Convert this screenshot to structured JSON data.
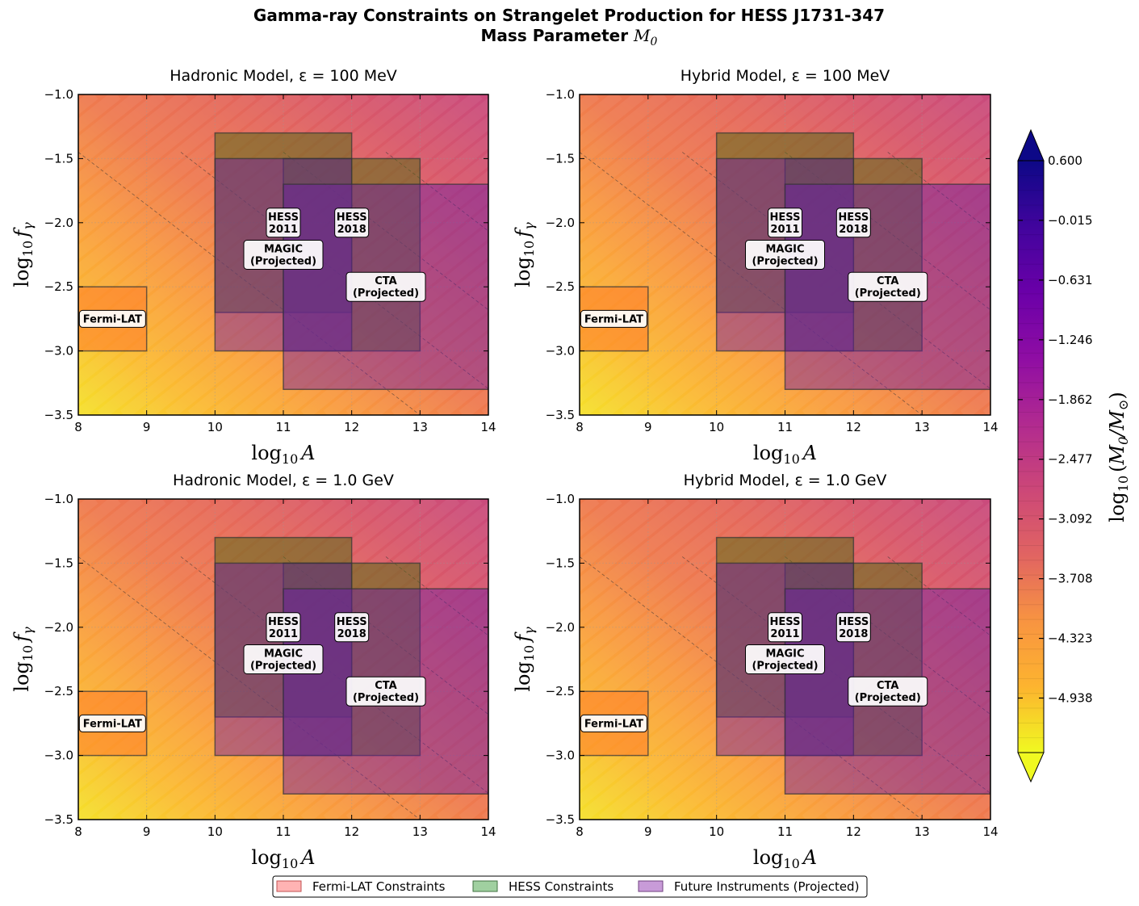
{
  "title": {
    "line1": "Gamma-ray Constraints on Strangelet Production for HESS J1731-347",
    "line2_prefix": "Mass Parameter ",
    "line2_symbol": "M",
    "line2_sub": "0"
  },
  "colors": {
    "fermi": "#ff8c7a",
    "hess": "#556b2f",
    "future": "#7b2d9e",
    "gradient": [
      "#f0f921",
      "#fdb42f",
      "#f89441",
      "#e16462",
      "#cc4778",
      "#b12a90",
      "#8f0da4",
      "#6a00a8",
      "#41049d",
      "#0d0887"
    ]
  },
  "chart_data": [
    {
      "type": "heatmap",
      "title": "Hadronic Model, ε = 100 MeV",
      "xlabel_base": "log",
      "xlabel_sub": "10",
      "xlabel_var": "A",
      "ylabel_base": "log",
      "ylabel_sub": "10",
      "ylabel_var": "f",
      "ylabel_var_sub": "γ",
      "xlim": [
        8,
        14
      ],
      "ylim": [
        -3.5,
        -1.0
      ],
      "xticks": [
        "8",
        "9",
        "10",
        "11",
        "12",
        "13",
        "14"
      ],
      "yticks": [
        "−1.0",
        "−1.5",
        "−2.0",
        "−2.5",
        "−3.0",
        "−3.5"
      ],
      "ytick_values": [
        -1.0,
        -1.5,
        -2.0,
        -2.5,
        -3.0,
        -3.5
      ],
      "regions": [
        {
          "name": "Fermi-LAT",
          "kind": "fermi",
          "x": [
            8,
            9
          ],
          "y": [
            -3.0,
            -2.5
          ]
        },
        {
          "name": "HESS 2011",
          "kind": "hess",
          "x": [
            10,
            12
          ],
          "y": [
            -2.7,
            -1.3
          ]
        },
        {
          "name": "HESS 2018",
          "kind": "hess",
          "x": [
            11,
            13
          ],
          "y": [
            -3.0,
            -1.5
          ]
        },
        {
          "name": "MAGIC (Projected)",
          "kind": "future",
          "x": [
            10,
            12
          ],
          "y": [
            -3.0,
            -1.5
          ]
        },
        {
          "name": "CTA (Projected)",
          "kind": "future",
          "x": [
            11,
            14
          ],
          "y": [
            -3.3,
            -1.7
          ]
        }
      ],
      "labels": [
        {
          "text": [
            "Fermi-LAT"
          ],
          "x": 8.5,
          "y": -2.75
        },
        {
          "text": [
            "HESS",
            "2011"
          ],
          "x": 11.0,
          "y": -2.0
        },
        {
          "text": [
            "HESS",
            "2018"
          ],
          "x": 12.0,
          "y": -2.0
        },
        {
          "text": [
            "MAGIC",
            "(Projected)"
          ],
          "x": 11.0,
          "y": -2.25
        },
        {
          "text": [
            "CTA",
            "(Projected)"
          ],
          "x": 12.5,
          "y": -2.5
        }
      ]
    },
    {
      "type": "heatmap",
      "title": "Hybrid Model, ε = 100 MeV",
      "xlabel_base": "log",
      "xlabel_sub": "10",
      "xlabel_var": "A",
      "ylabel_base": "log",
      "ylabel_sub": "10",
      "ylabel_var": "f",
      "ylabel_var_sub": "γ",
      "xlim": [
        8,
        14
      ],
      "ylim": [
        -3.5,
        -1.0
      ],
      "xticks": [
        "8",
        "9",
        "10",
        "11",
        "12",
        "13",
        "14"
      ],
      "yticks": [
        "−1.0",
        "−1.5",
        "−2.0",
        "−2.5",
        "−3.0",
        "−3.5"
      ],
      "ytick_values": [
        -1.0,
        -1.5,
        -2.0,
        -2.5,
        -3.0,
        -3.5
      ],
      "regions": [
        {
          "name": "Fermi-LAT",
          "kind": "fermi",
          "x": [
            8,
            9
          ],
          "y": [
            -3.0,
            -2.5
          ]
        },
        {
          "name": "HESS 2011",
          "kind": "hess",
          "x": [
            10,
            12
          ],
          "y": [
            -2.7,
            -1.3
          ]
        },
        {
          "name": "HESS 2018",
          "kind": "hess",
          "x": [
            11,
            13
          ],
          "y": [
            -3.0,
            -1.5
          ]
        },
        {
          "name": "MAGIC (Projected)",
          "kind": "future",
          "x": [
            10,
            12
          ],
          "y": [
            -3.0,
            -1.5
          ]
        },
        {
          "name": "CTA (Projected)",
          "kind": "future",
          "x": [
            11,
            14
          ],
          "y": [
            -3.3,
            -1.7
          ]
        }
      ],
      "labels": [
        {
          "text": [
            "Fermi-LAT"
          ],
          "x": 8.5,
          "y": -2.75
        },
        {
          "text": [
            "HESS",
            "2011"
          ],
          "x": 11.0,
          "y": -2.0
        },
        {
          "text": [
            "HESS",
            "2018"
          ],
          "x": 12.0,
          "y": -2.0
        },
        {
          "text": [
            "MAGIC",
            "(Projected)"
          ],
          "x": 11.0,
          "y": -2.25
        },
        {
          "text": [
            "CTA",
            "(Projected)"
          ],
          "x": 12.5,
          "y": -2.5
        }
      ]
    },
    {
      "type": "heatmap",
      "title": "Hadronic Model, ε = 1.0 GeV",
      "xlabel_base": "log",
      "xlabel_sub": "10",
      "xlabel_var": "A",
      "ylabel_base": "log",
      "ylabel_sub": "10",
      "ylabel_var": "f",
      "ylabel_var_sub": "γ",
      "xlim": [
        8,
        14
      ],
      "ylim": [
        -3.5,
        -1.0
      ],
      "xticks": [
        "8",
        "9",
        "10",
        "11",
        "12",
        "13",
        "14"
      ],
      "yticks": [
        "−1.0",
        "−1.5",
        "−2.0",
        "−2.5",
        "−3.0",
        "−3.5"
      ],
      "ytick_values": [
        -1.0,
        -1.5,
        -2.0,
        -2.5,
        -3.0,
        -3.5
      ],
      "regions": [
        {
          "name": "Fermi-LAT",
          "kind": "fermi",
          "x": [
            8,
            9
          ],
          "y": [
            -3.0,
            -2.5
          ]
        },
        {
          "name": "HESS 2011",
          "kind": "hess",
          "x": [
            10,
            12
          ],
          "y": [
            -2.7,
            -1.3
          ]
        },
        {
          "name": "HESS 2018",
          "kind": "hess",
          "x": [
            11,
            13
          ],
          "y": [
            -3.0,
            -1.5
          ]
        },
        {
          "name": "MAGIC (Projected)",
          "kind": "future",
          "x": [
            10,
            12
          ],
          "y": [
            -3.0,
            -1.5
          ]
        },
        {
          "name": "CTA (Projected)",
          "kind": "future",
          "x": [
            11,
            14
          ],
          "y": [
            -3.3,
            -1.7
          ]
        }
      ],
      "labels": [
        {
          "text": [
            "Fermi-LAT"
          ],
          "x": 8.5,
          "y": -2.75
        },
        {
          "text": [
            "HESS",
            "2011"
          ],
          "x": 11.0,
          "y": -2.0
        },
        {
          "text": [
            "HESS",
            "2018"
          ],
          "x": 12.0,
          "y": -2.0
        },
        {
          "text": [
            "MAGIC",
            "(Projected)"
          ],
          "x": 11.0,
          "y": -2.25
        },
        {
          "text": [
            "CTA",
            "(Projected)"
          ],
          "x": 12.5,
          "y": -2.5
        }
      ]
    },
    {
      "type": "heatmap",
      "title": "Hybrid Model, ε = 1.0 GeV",
      "xlabel_base": "log",
      "xlabel_sub": "10",
      "xlabel_var": "A",
      "ylabel_base": "log",
      "ylabel_sub": "10",
      "ylabel_var": "f",
      "ylabel_var_sub": "γ",
      "xlim": [
        8,
        14
      ],
      "ylim": [
        -3.5,
        -1.0
      ],
      "xticks": [
        "8",
        "9",
        "10",
        "11",
        "12",
        "13",
        "14"
      ],
      "yticks": [
        "−1.0",
        "−1.5",
        "−2.0",
        "−2.5",
        "−3.0",
        "−3.5"
      ],
      "ytick_values": [
        -1.0,
        -1.5,
        -2.0,
        -2.5,
        -3.0,
        -3.5
      ],
      "regions": [
        {
          "name": "Fermi-LAT",
          "kind": "fermi",
          "x": [
            8,
            9
          ],
          "y": [
            -3.0,
            -2.5
          ]
        },
        {
          "name": "HESS 2011",
          "kind": "hess",
          "x": [
            10,
            12
          ],
          "y": [
            -2.7,
            -1.3
          ]
        },
        {
          "name": "HESS 2018",
          "kind": "hess",
          "x": [
            11,
            13
          ],
          "y": [
            -3.0,
            -1.5
          ]
        },
        {
          "name": "MAGIC (Projected)",
          "kind": "future",
          "x": [
            10,
            12
          ],
          "y": [
            -3.0,
            -1.5
          ]
        },
        {
          "name": "CTA (Projected)",
          "kind": "future",
          "x": [
            11,
            14
          ],
          "y": [
            -3.3,
            -1.7
          ]
        }
      ],
      "labels": [
        {
          "text": [
            "Fermi-LAT"
          ],
          "x": 8.5,
          "y": -2.75
        },
        {
          "text": [
            "HESS",
            "2011"
          ],
          "x": 11.0,
          "y": -2.0
        },
        {
          "text": [
            "HESS",
            "2018"
          ],
          "x": 12.0,
          "y": -2.0
        },
        {
          "text": [
            "MAGIC",
            "(Projected)"
          ],
          "x": 11.0,
          "y": -2.25
        },
        {
          "text": [
            "CTA",
            "(Projected)"
          ],
          "x": 12.5,
          "y": -2.5
        }
      ]
    }
  ],
  "colorbar": {
    "ticks": [
      "0.600",
      "−0.015",
      "−0.631",
      "−1.246",
      "−1.862",
      "−2.477",
      "−3.092",
      "−3.708",
      "−4.323",
      "−4.938"
    ],
    "tick_values": [
      0.6,
      -0.015,
      -0.631,
      -1.246,
      -1.862,
      -2.477,
      -3.092,
      -3.708,
      -4.323,
      -4.938
    ],
    "range": [
      -5.5,
      0.6
    ],
    "label_prefix": "log",
    "label_sub": "10",
    "label_body": "(M",
    "label_body_sub": "0",
    "label_slash": "/M",
    "label_sun": "⊙",
    "label_close": ")"
  },
  "legend": {
    "items": [
      {
        "label": "Fermi-LAT Constraints",
        "color": "#ffb3b3",
        "edge": "#c05050"
      },
      {
        "label": "HESS Constraints",
        "color": "#a0d0a0",
        "edge": "#407040"
      },
      {
        "label": "Future Instruments (Projected)",
        "color": "#c89bd8",
        "edge": "#704080"
      }
    ]
  }
}
